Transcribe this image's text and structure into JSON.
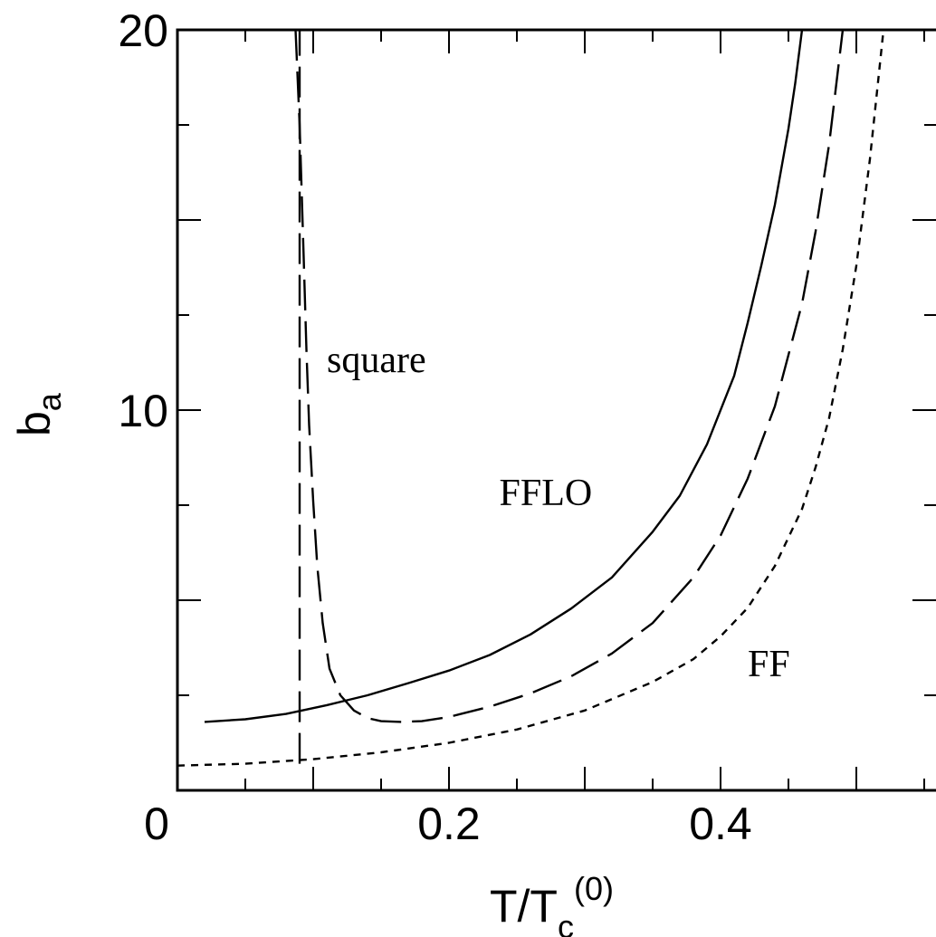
{
  "chart_data": {
    "type": "line",
    "xlabel": {
      "main": "T/T",
      "sub": "c",
      "sup": "(0)"
    },
    "ylabel": {
      "main": "b",
      "sub": "a"
    },
    "xlim": [
      0,
      0.55
    ],
    "ylim": [
      0,
      20
    ],
    "x_ticks": [
      {
        "value": 0,
        "label": "0"
      },
      {
        "value": 0.2,
        "label": "0.2"
      },
      {
        "value": 0.4,
        "label": "0.4"
      }
    ],
    "y_ticks": [
      {
        "value": 10,
        "label": "10"
      },
      {
        "value": 20,
        "label": "20"
      }
    ],
    "x_minor_step": 0.05,
    "y_minor_step": 2.5,
    "grid": false,
    "legend": "none",
    "annotations": [
      {
        "text": "square",
        "x": 0.11,
        "y": 11.0
      },
      {
        "text": "FFLO",
        "x": 0.237,
        "y": 7.5
      },
      {
        "text": "FF",
        "x": 0.42,
        "y": 3.0
      }
    ],
    "series": [
      {
        "style": "solid",
        "x": [
          0.02,
          0.05,
          0.08,
          0.11,
          0.14,
          0.17,
          0.2,
          0.23,
          0.26,
          0.29,
          0.32,
          0.35,
          0.37,
          0.39,
          0.41,
          0.42,
          0.43,
          0.44,
          0.45,
          0.455,
          0.46
        ],
        "y": [
          1.8,
          1.87,
          2.01,
          2.24,
          2.5,
          2.82,
          3.15,
          3.56,
          4.1,
          4.78,
          5.6,
          6.8,
          7.75,
          9.1,
          10.9,
          12.3,
          13.8,
          15.4,
          17.4,
          18.6,
          20.0
        ]
      },
      {
        "style": "long-dash",
        "x": [
          0.09,
          0.09
        ],
        "y": [
          0.7,
          20.0
        ]
      },
      {
        "style": "long-dash",
        "x": [
          0.087,
          0.09,
          0.093,
          0.095,
          0.097,
          0.1,
          0.103,
          0.107,
          0.112,
          0.12,
          0.13,
          0.14,
          0.15,
          0.165,
          0.18,
          0.2,
          0.23,
          0.26,
          0.29,
          0.32,
          0.35,
          0.38,
          0.4,
          0.42,
          0.44,
          0.46,
          0.47,
          0.48,
          0.49
        ],
        "y": [
          20.0,
          17.5,
          14.0,
          11.6,
          9.6,
          7.6,
          5.9,
          4.4,
          3.2,
          2.5,
          2.1,
          1.9,
          1.82,
          1.8,
          1.82,
          1.93,
          2.2,
          2.55,
          3.0,
          3.6,
          4.4,
          5.6,
          6.7,
          8.2,
          10.1,
          12.8,
          14.7,
          17.0,
          20.0
        ]
      },
      {
        "style": "short-dash",
        "x": [
          0.0,
          0.05,
          0.1,
          0.15,
          0.2,
          0.25,
          0.3,
          0.35,
          0.38,
          0.4,
          0.42,
          0.44,
          0.46,
          0.47,
          0.48,
          0.49,
          0.5,
          0.51,
          0.52
        ],
        "y": [
          0.65,
          0.7,
          0.82,
          1.0,
          1.25,
          1.6,
          2.1,
          2.85,
          3.45,
          4.05,
          4.8,
          5.9,
          7.4,
          8.5,
          9.8,
          11.6,
          13.8,
          16.6,
          20.0
        ]
      }
    ]
  }
}
